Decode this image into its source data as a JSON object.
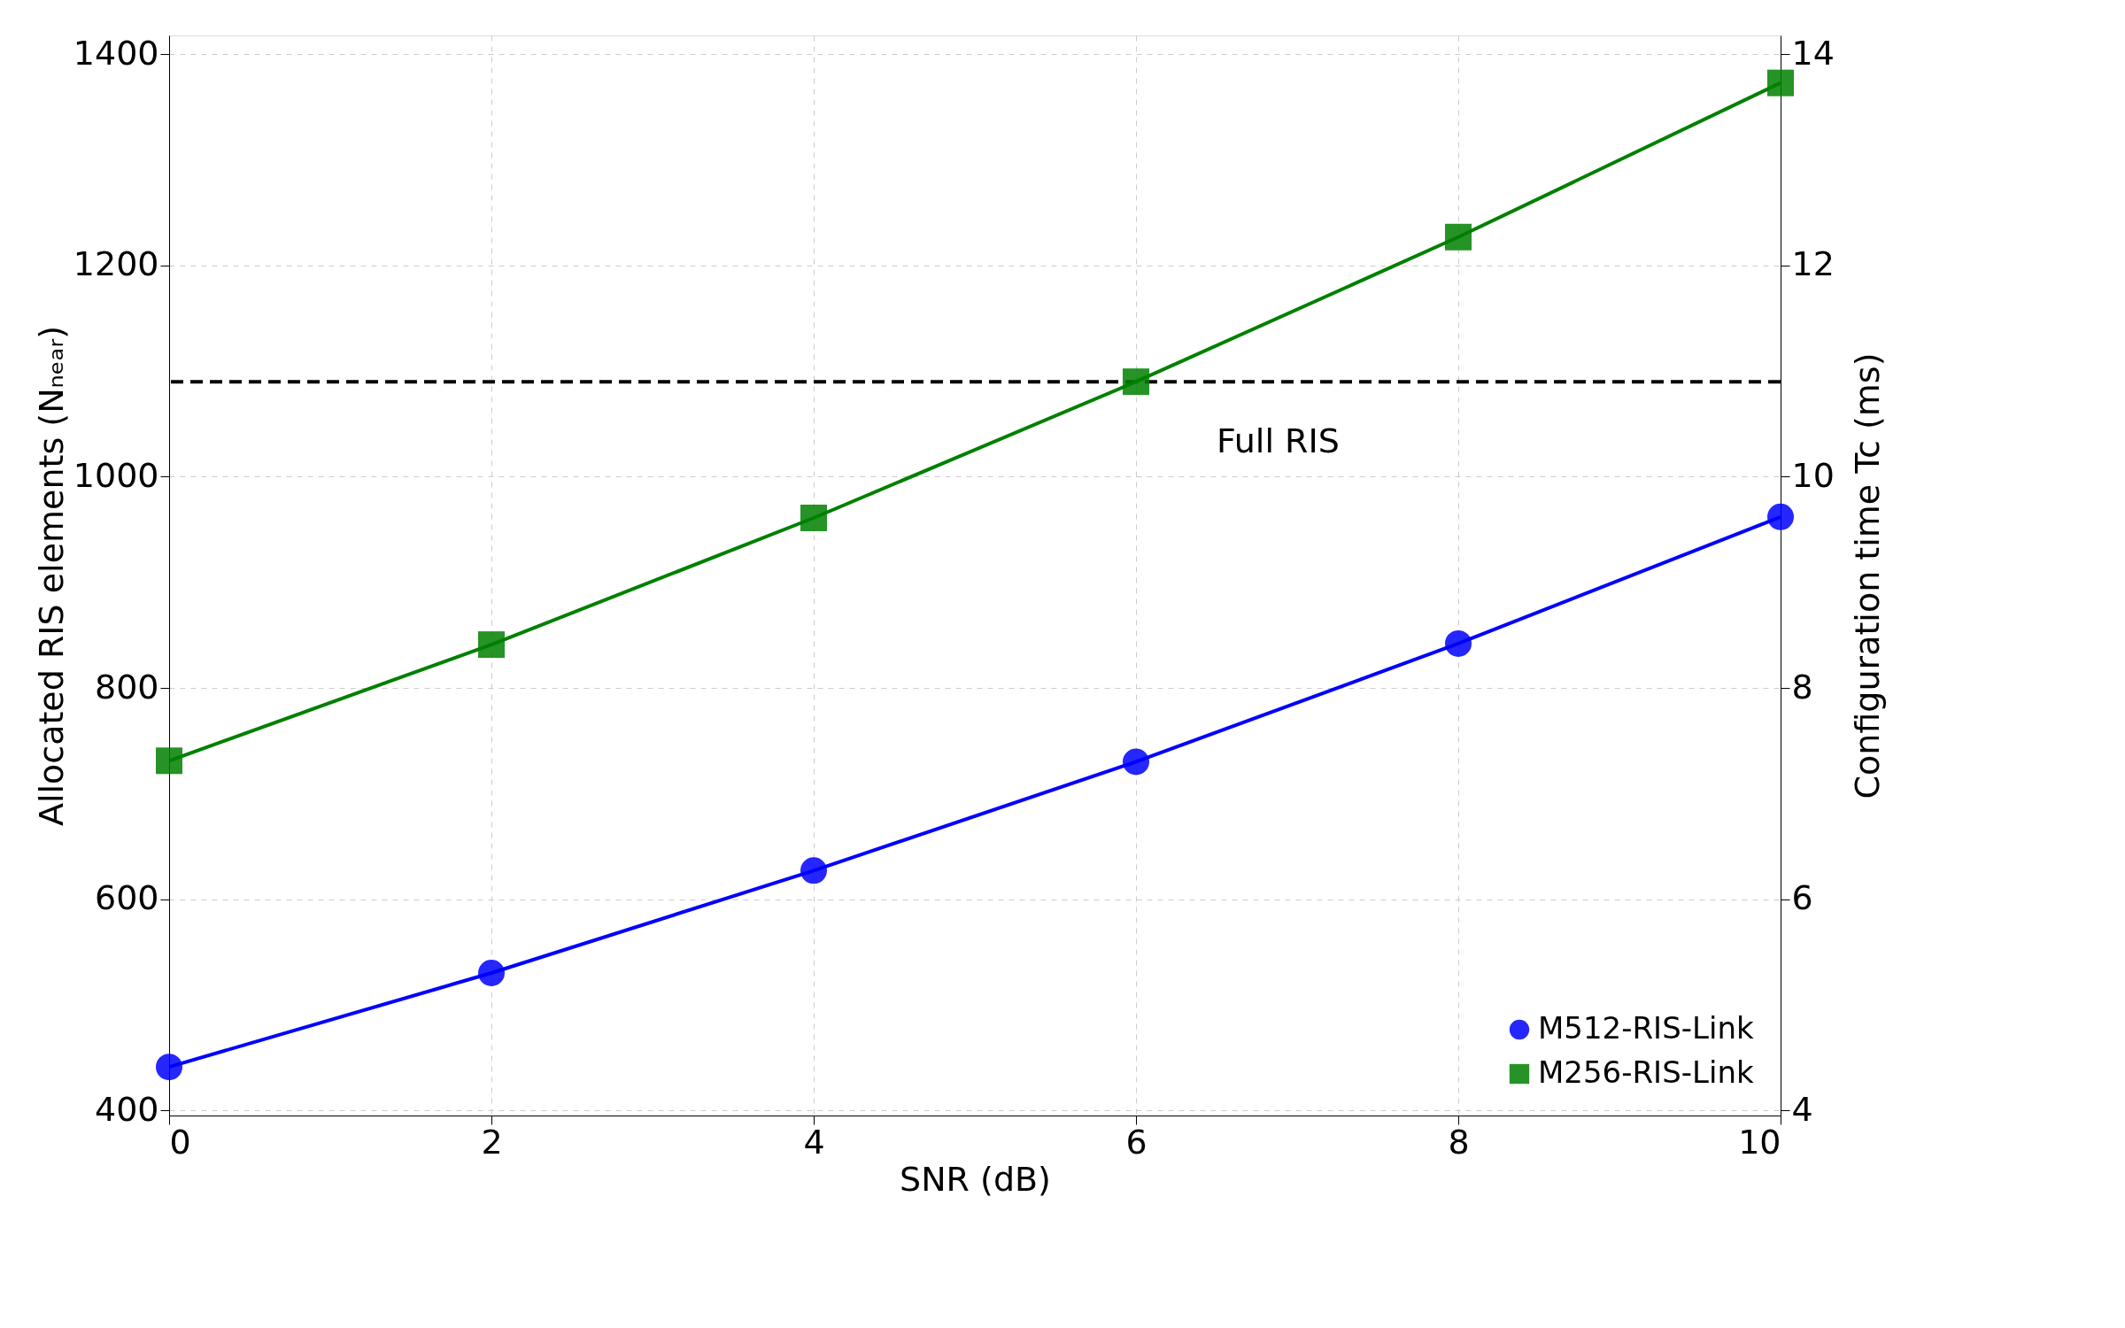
{
  "chart_data": {
    "type": "line",
    "xlabel": "SNR (dB)",
    "ylabel": "Allocated RIS elements (Nₙₑₐᵣ)",
    "y2label": "Configuration time Tc (ms)",
    "x": [
      0,
      2,
      4,
      6,
      8,
      10
    ],
    "series": [
      {
        "name": "M512-RIS-Link",
        "color": "#0000ff",
        "marker": "circle",
        "values": [
          441,
          530,
          627,
          730,
          842,
          962
        ]
      },
      {
        "name": "M256-RIS-Link",
        "color": "#008000",
        "marker": "square",
        "values": [
          731,
          841,
          961,
          1090,
          1227,
          1373
        ]
      }
    ],
    "xlim": [
      0,
      10
    ],
    "xticks": [
      0,
      2,
      4,
      6,
      8,
      10
    ],
    "ylim": [
      395,
      1418
    ],
    "yticks": [
      400,
      600,
      800,
      1000,
      1200,
      1400
    ],
    "y2lim": [
      3.95,
      14.18
    ],
    "y2ticks": [
      4,
      6,
      8,
      10,
      12,
      14
    ],
    "ref_lines": [
      {
        "axis": "y",
        "value": 1090,
        "label": "Full RIS",
        "color": "#000000",
        "line_style": "dashed"
      }
    ],
    "grid": true,
    "legend": "bottom right",
    "line_style": "solid"
  }
}
